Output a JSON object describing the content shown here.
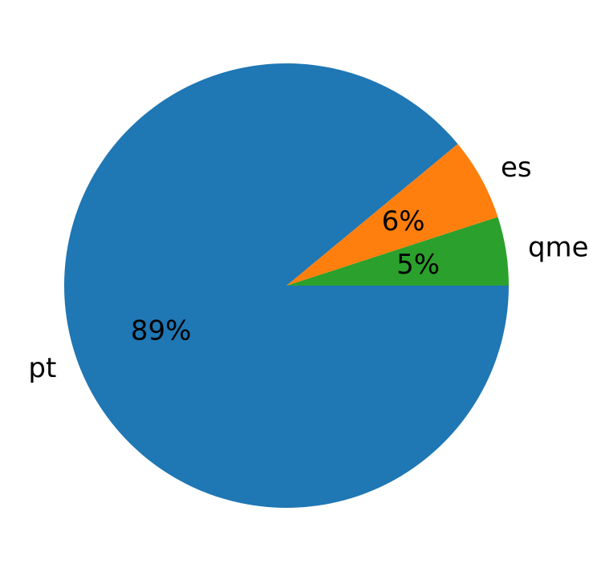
{
  "chart_data": {
    "type": "pie",
    "start_angle_deg": 0,
    "direction": "counterclockwise",
    "slices": [
      {
        "label": "qme",
        "value": 5,
        "pct_label": "5%",
        "color": "#2ca02c"
      },
      {
        "label": "es",
        "value": 6,
        "pct_label": "6%",
        "color": "#ff7f0e"
      },
      {
        "label": "pt",
        "value": 89,
        "pct_label": "89%",
        "color": "#1f77b4"
      }
    ]
  }
}
